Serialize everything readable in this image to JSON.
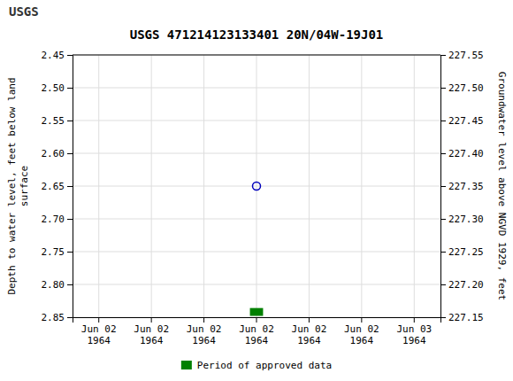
{
  "chart_data": {
    "type": "scatter",
    "title": "USGS 471214123133401 20N/04W-19J01",
    "annotations": [
      {
        "text": "USGS"
      }
    ],
    "y_label": "Depth to water level, feet below land\nsurface",
    "y2_label": "Groundwater level above NGVD 1929, feet",
    "categories": [
      "Jun 02\n1964",
      "Jun 02\n1964",
      "Jun 02\n1964",
      "Jun 02\n1964",
      "Jun 02\n1964",
      "Jun 02\n1964",
      "Jun 03\n1964"
    ],
    "series": [
      {
        "type": "scatter",
        "color": "#0000bb",
        "marker": "circle-open",
        "values": [
          null,
          null,
          null,
          2.65,
          null,
          null,
          null
        ]
      },
      {
        "name": "Period of approved data",
        "type": "bar",
        "color": "#008000",
        "values": [
          null,
          null,
          null,
          2.848,
          null,
          null,
          null
        ],
        "bottom": [
          null,
          null,
          null,
          2.836,
          null,
          null,
          null
        ]
      }
    ],
    "ylim": [
      2.85,
      2.45
    ],
    "yticks": [
      2.45,
      {
        "value": 2.5,
        "label": "2.50"
      },
      2.55,
      {
        "value": 2.6,
        "label": "2.60"
      },
      2.65,
      {
        "value": 2.7,
        "label": "2.70"
      },
      2.75,
      {
        "value": 2.8,
        "label": "2.80"
      },
      2.85
    ],
    "y2lim": [
      227.15,
      227.55
    ],
    "y2ticks": [
      227.55,
      {
        "value": 227.5,
        "label": "227.50"
      },
      227.45,
      {
        "value": 227.4,
        "label": "227.40"
      },
      227.35,
      {
        "value": 227.3,
        "label": "227.30"
      },
      227.25,
      {
        "value": 227.2,
        "label": "227.20"
      },
      227.15
    ],
    "grid": true,
    "legend": "bottom"
  }
}
